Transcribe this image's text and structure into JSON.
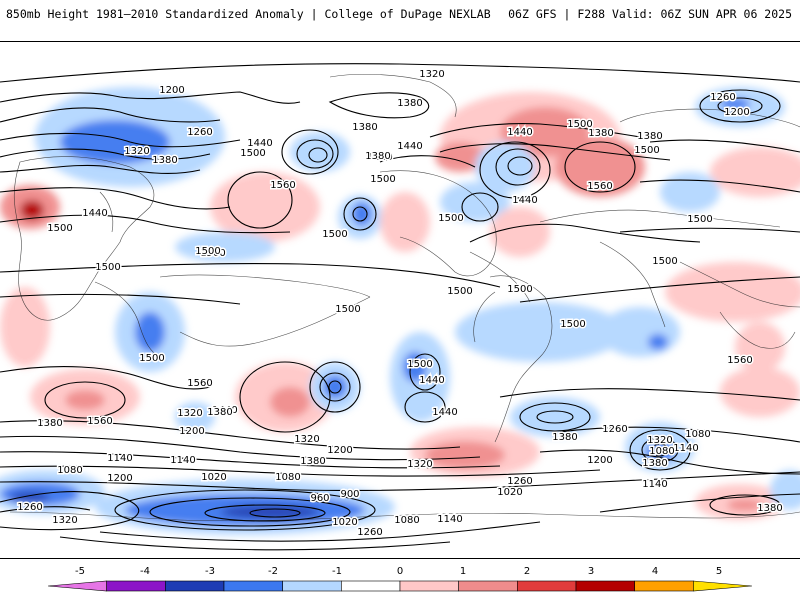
{
  "header": {
    "left_title": "850mb Height 1981–2010 Standardized Anomaly | College of DuPage NEXLAB",
    "right_title": "06Z GFS | F288 Valid: 06Z SUN APR 06 2025"
  },
  "legend": {
    "ticks": [
      "-5",
      "-4",
      "-3",
      "-2",
      "-1",
      "0",
      "1",
      "2",
      "3",
      "4",
      "5"
    ],
    "colors": [
      "#e675e6",
      "#8c14c8",
      "#1e3cb4",
      "#3c78f0",
      "#b4d7ff",
      "#ffffff",
      "#ffc8c8",
      "#f08c8c",
      "#e13c3c",
      "#b40000",
      "#ffa000",
      "#ffe000"
    ]
  },
  "contour_labels": [
    "1320",
    "1200",
    "1380",
    "1260",
    "1320",
    "1380",
    "1440",
    "1500",
    "1500",
    "1500",
    "1440",
    "1500",
    "1380",
    "1440",
    "1560",
    "1500",
    "1440",
    "1380",
    "1500",
    "1560",
    "1500",
    "1440",
    "1500",
    "1380",
    "1440",
    "1500",
    "1260",
    "1200",
    "1380",
    "1500",
    "1560",
    "1500",
    "1500",
    "1500",
    "1500",
    "1560",
    "1500",
    "1500",
    "1500",
    "1440",
    "1500",
    "1380",
    "1560",
    "1440",
    "1320",
    "1200",
    "1380",
    "1260",
    "1560",
    "1440",
    "1320",
    "1380",
    "1260",
    "1320",
    "1140",
    "1080",
    "1200",
    "1140",
    "1080",
    "1020",
    "960",
    "900",
    "1020",
    "1080",
    "1140",
    "1260",
    "1260",
    "1200",
    "1080",
    "1140",
    "1320",
    "1380",
    "1380",
    "1140",
    "1020",
    "1080",
    "1200",
    "1320",
    "1380",
    "1560",
    "1440"
  ]
}
